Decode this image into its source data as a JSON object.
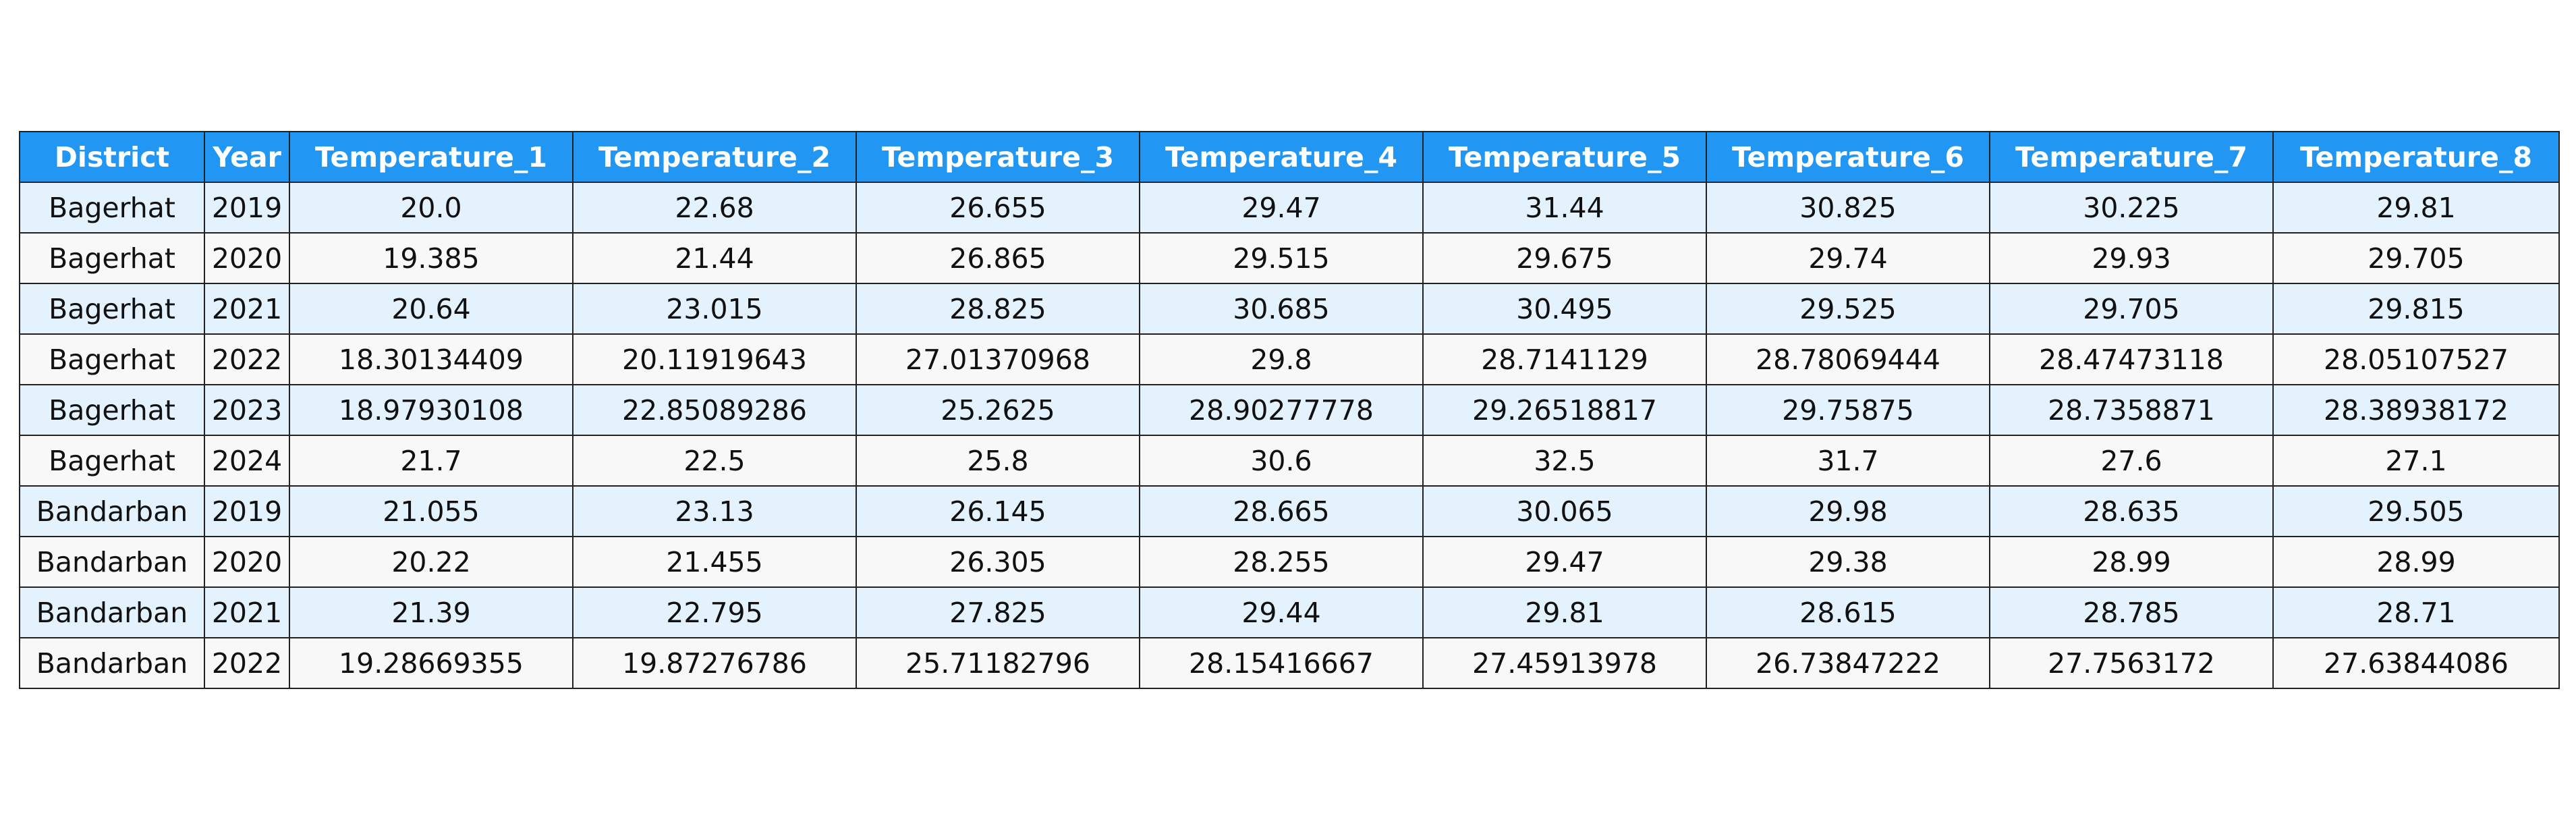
{
  "chart_data": {
    "type": "table",
    "columns": [
      "District",
      "Year",
      "Temperature_1",
      "Temperature_2",
      "Temperature_3",
      "Temperature_4",
      "Temperature_5",
      "Temperature_6",
      "Temperature_7",
      "Temperature_8"
    ],
    "rows": [
      [
        "Bagerhat",
        "2019",
        "20.0",
        "22.68",
        "26.655",
        "29.47",
        "31.44",
        "30.825",
        "30.225",
        "29.81"
      ],
      [
        "Bagerhat",
        "2020",
        "19.385",
        "21.44",
        "26.865",
        "29.515",
        "29.675",
        "29.74",
        "29.93",
        "29.705"
      ],
      [
        "Bagerhat",
        "2021",
        "20.64",
        "23.015",
        "28.825",
        "30.685",
        "30.495",
        "29.525",
        "29.705",
        "29.815"
      ],
      [
        "Bagerhat",
        "2022",
        "18.30134409",
        "20.11919643",
        "27.01370968",
        "29.8",
        "28.7141129",
        "28.78069444",
        "28.47473118",
        "28.05107527"
      ],
      [
        "Bagerhat",
        "2023",
        "18.97930108",
        "22.85089286",
        "25.2625",
        "28.90277778",
        "29.26518817",
        "29.75875",
        "28.7358871",
        "28.38938172"
      ],
      [
        "Bagerhat",
        "2024",
        "21.7",
        "22.5",
        "25.8",
        "30.6",
        "32.5",
        "31.7",
        "27.6",
        "27.1"
      ],
      [
        "Bandarban",
        "2019",
        "21.055",
        "23.13",
        "26.145",
        "28.665",
        "30.065",
        "29.98",
        "28.635",
        "29.505"
      ],
      [
        "Bandarban",
        "2020",
        "20.22",
        "21.455",
        "26.305",
        "28.255",
        "29.47",
        "29.38",
        "28.99",
        "28.99"
      ],
      [
        "Bandarban",
        "2021",
        "21.39",
        "22.795",
        "27.825",
        "29.44",
        "29.81",
        "28.615",
        "28.785",
        "28.71"
      ],
      [
        "Bandarban",
        "2022",
        "19.28669355",
        "19.87276786",
        "25.71182796",
        "28.15416667",
        "27.45913978",
        "26.73847222",
        "27.7563172",
        "27.63844086"
      ]
    ],
    "header_color": "#2196f3",
    "header_text_color": "#ffffff",
    "row_colors": [
      "#e3f2fd",
      "#f8f8f8"
    ],
    "border_color": "#222222"
  }
}
